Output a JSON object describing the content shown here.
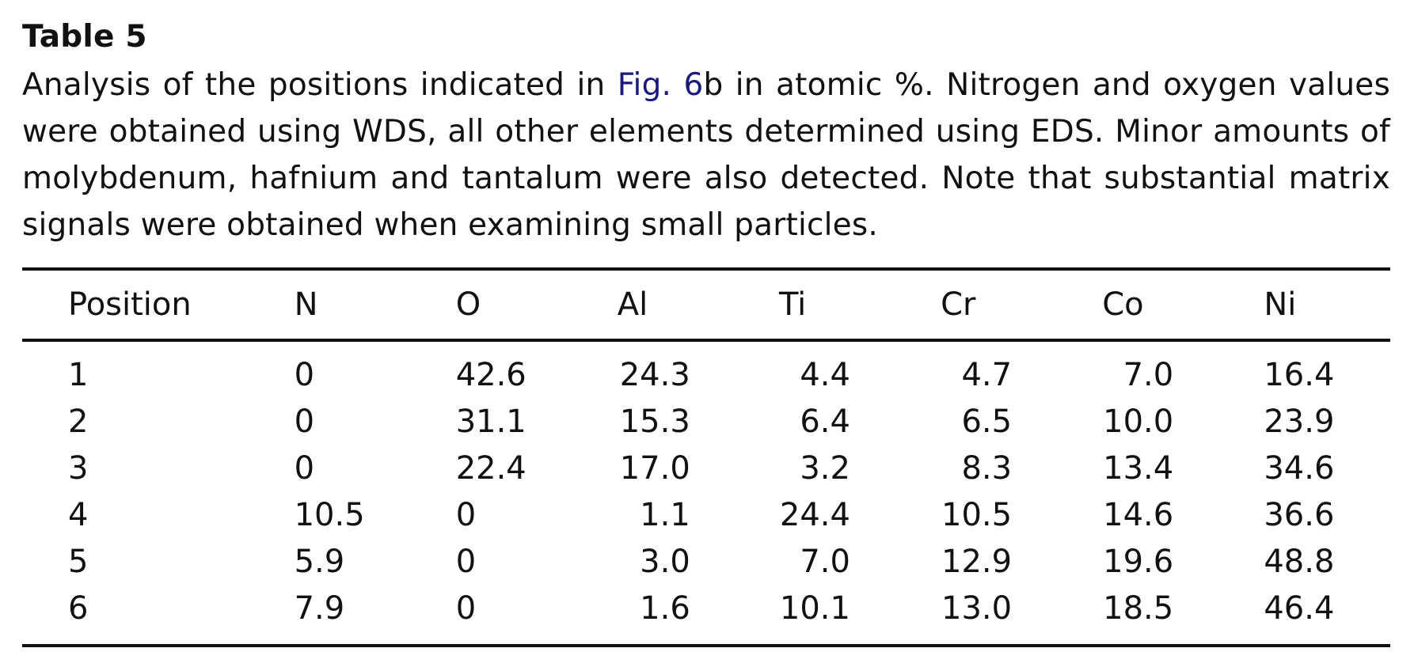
{
  "table": {
    "label": "Table 5",
    "caption_pre": "Analysis of the positions indicated in ",
    "caption_link": "Fig. 6",
    "caption_post": "b in atomic %. Nitrogen and oxygen values were obtained using WDS, all other elements determined using EDS. Minor amounts of molybdenum, hafnium and tantalum were also detected. Note that substantial matrix signals were obtained when examining small particles.",
    "headers": [
      "Position",
      "N",
      "O",
      "Al",
      "Ti",
      "Cr",
      "Co",
      "Ni"
    ],
    "rows": [
      [
        "1",
        "0",
        "42.6",
        "24.3",
        "4.4",
        "4.7",
        "7.0",
        "16.4"
      ],
      [
        "2",
        "0",
        "31.1",
        "15.3",
        "6.4",
        "6.5",
        "10.0",
        "23.9"
      ],
      [
        "3",
        "0",
        "22.4",
        "17.0",
        "3.2",
        "8.3",
        "13.4",
        "34.6"
      ],
      [
        "4",
        "10.5",
        "0",
        "1.1",
        "24.4",
        "10.5",
        "14.6",
        "36.6"
      ],
      [
        "5",
        "5.9",
        "0",
        "3.0",
        "7.0",
        "12.9",
        "19.6",
        "48.8"
      ],
      [
        "6",
        "7.9",
        "0",
        "1.6",
        "10.1",
        "13.0",
        "18.5",
        "46.4"
      ]
    ]
  },
  "colors": {
    "link": "#1a1a7e",
    "text": "#111111"
  }
}
